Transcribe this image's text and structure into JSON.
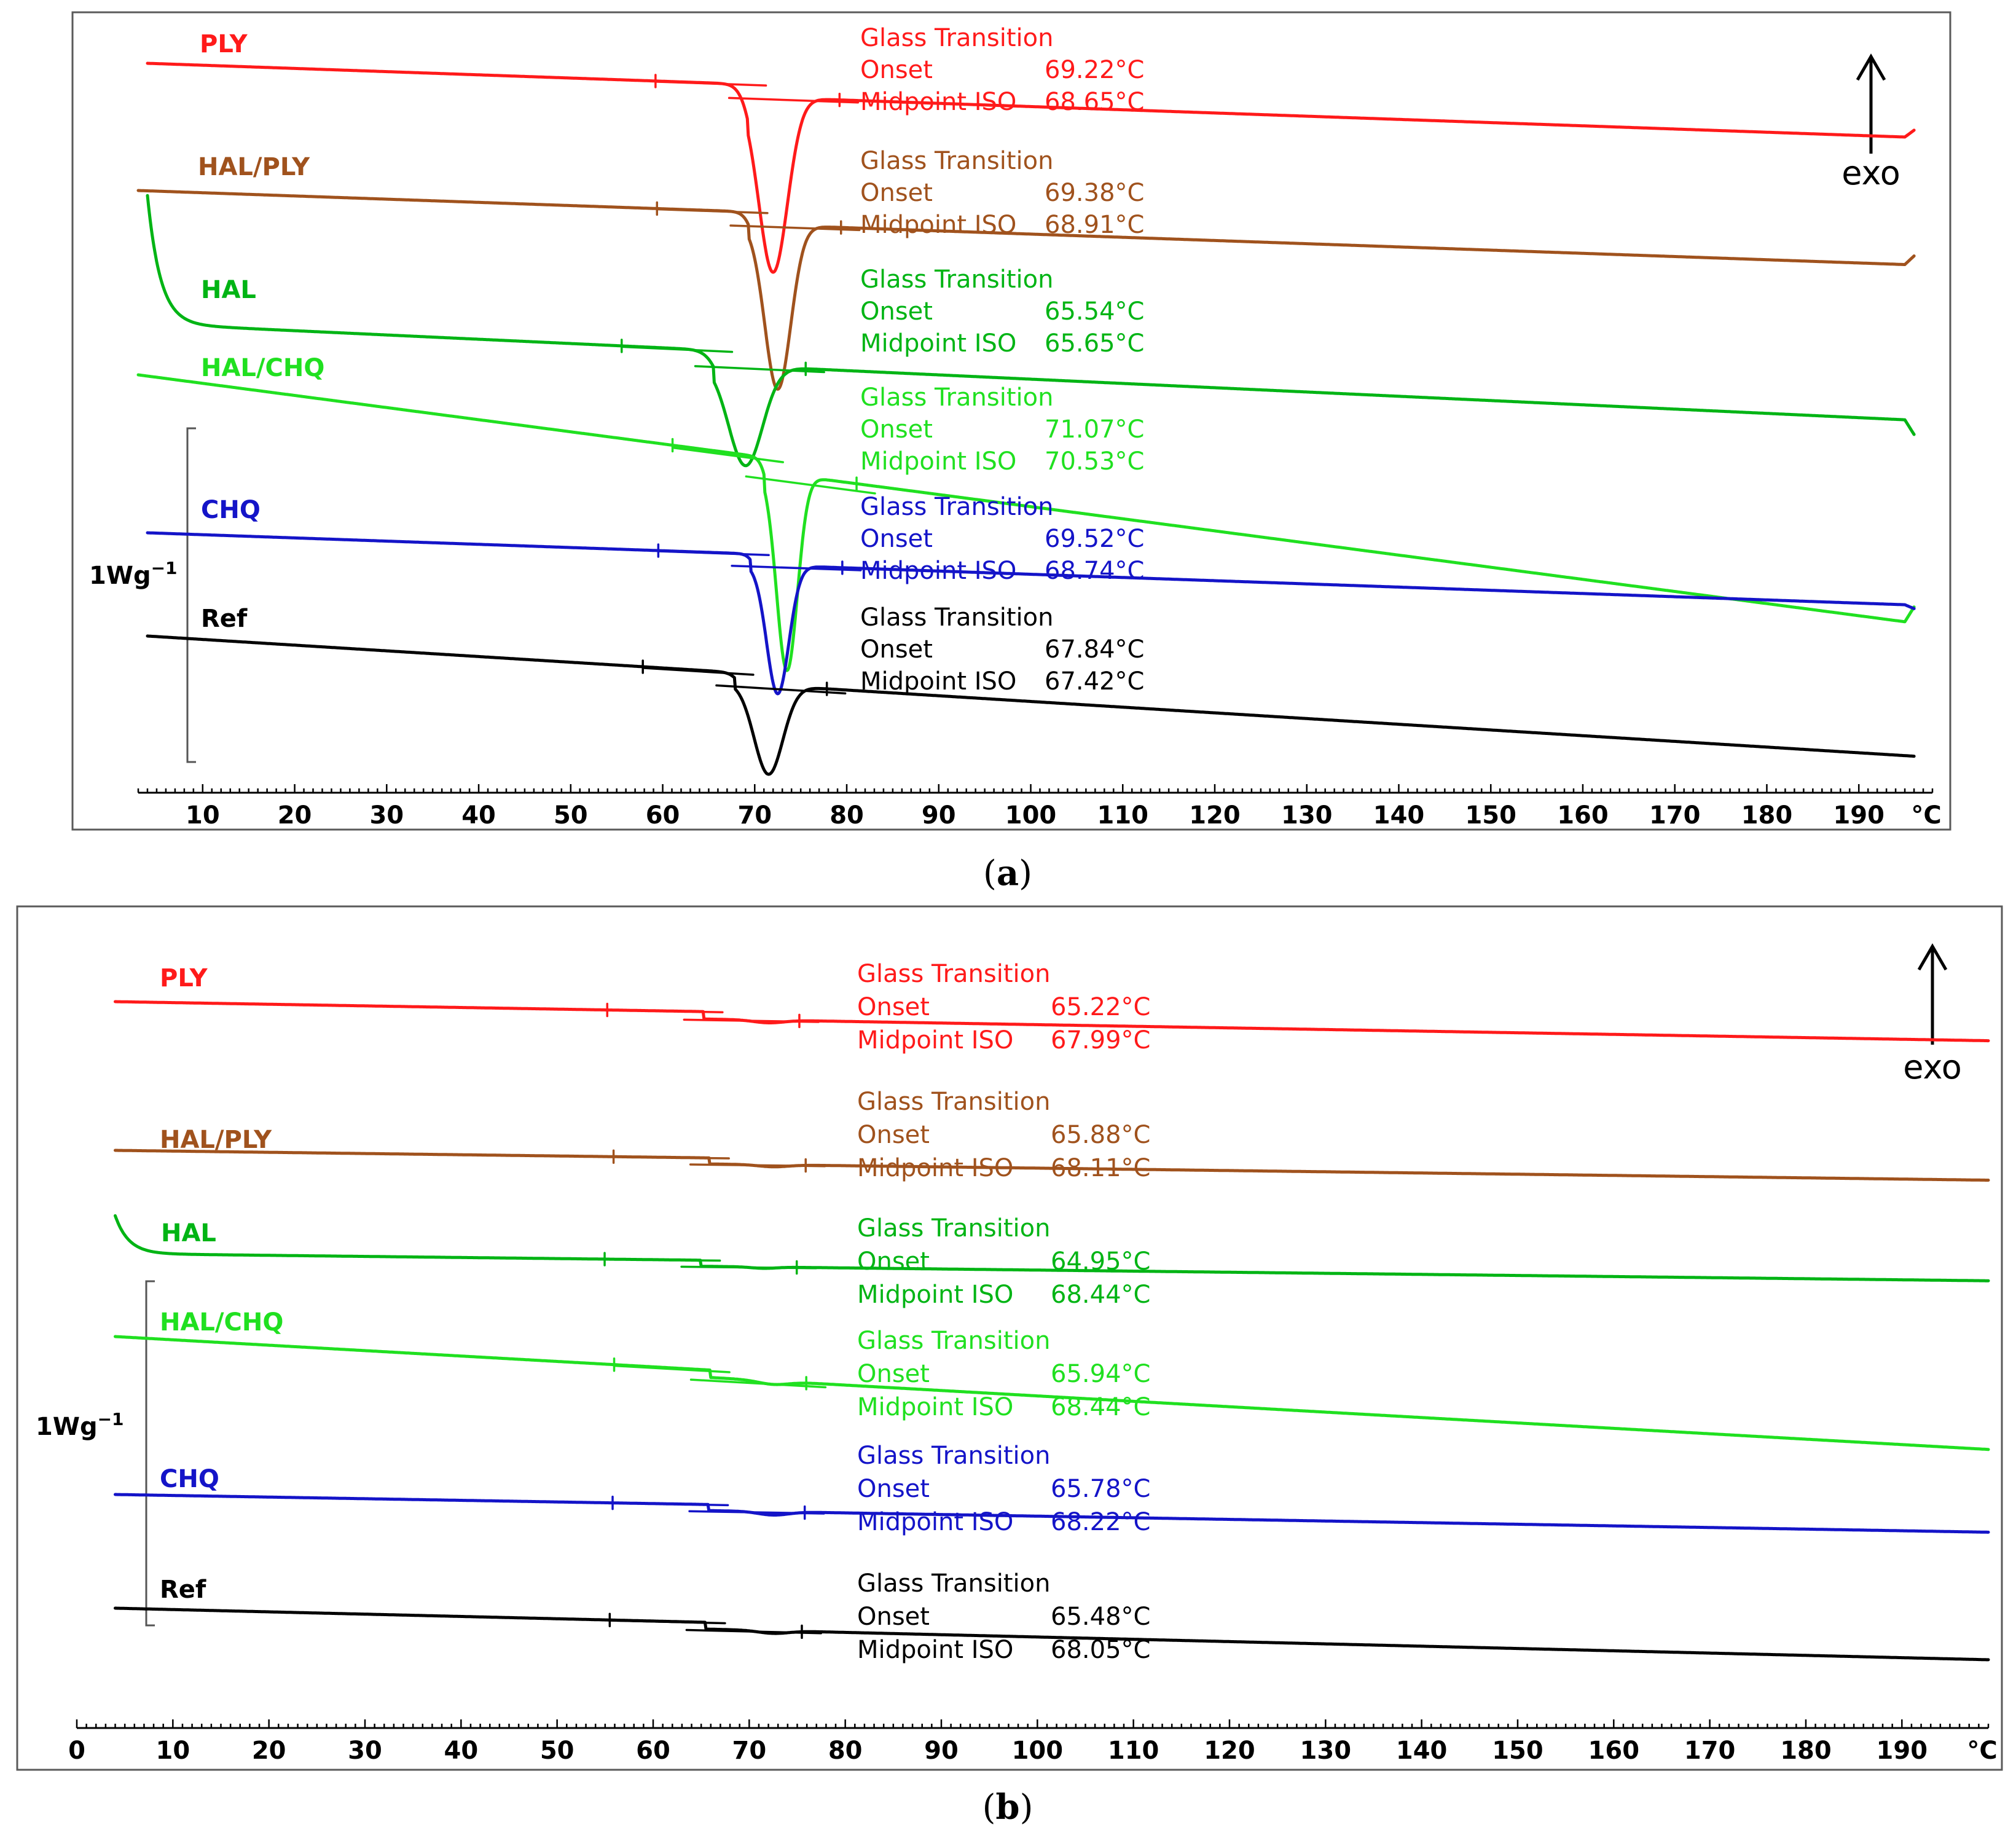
{
  "figure_caption_a": "a",
  "figure_caption_b": "b",
  "colors": {
    "PLY": "#ff1a1a",
    "HAL/PLY": "#a0521d",
    "HAL": "#00b414",
    "HAL/CHQ": "#20e020",
    "CHQ": "#1414c8",
    "Ref": "#000000"
  },
  "chart_data": [
    {
      "type": "line",
      "panel": "a",
      "title": "",
      "xlabel": "°C",
      "xlim": [
        3,
        198
      ],
      "x_ticks": [
        10,
        20,
        30,
        40,
        50,
        60,
        70,
        80,
        90,
        100,
        110,
        120,
        130,
        140,
        150,
        160,
        170,
        180,
        190
      ],
      "x_unit_label": "°C",
      "scale_bar_label": "1Wg",
      "scale_bar_exponent": "−1",
      "exo_label": "exo",
      "series": [
        {
          "name": "PLY",
          "start": 4,
          "end": 196,
          "y_start": 0.0,
          "slope": 0.009,
          "tg": 69.22,
          "dip_center": 72.0,
          "dip_depth": 4.9,
          "dip_width": 2.2,
          "step": 0.35,
          "end_hook": 0.2,
          "annotation": {
            "title": "Glass Transition",
            "onset_label": "Onset",
            "onset_value": "69.22°C",
            "midpoint_label": "Midpoint ISO",
            "midpoint_value": "68.65°C"
          }
        },
        {
          "name": "HAL/PLY",
          "start": 3,
          "end": 196,
          "y_start": 0.0,
          "slope": 0.009,
          "tg": 69.38,
          "dip_center": 72.5,
          "dip_depth": 4.6,
          "dip_width": 2.0,
          "step": 0.35,
          "end_hook": 0.25,
          "annotation": {
            "title": "Glass Transition",
            "onset_label": "Onset",
            "onset_value": "69.38°C",
            "midpoint_label": "Midpoint ISO",
            "midpoint_value": "68.91°C"
          }
        },
        {
          "name": "HAL",
          "start": 4,
          "end": 196,
          "y_start": 0.0,
          "slope": 0.012,
          "tg": 65.54,
          "dip_center": 69.0,
          "dip_depth": 2.8,
          "dip_width": 2.6,
          "step": 0.4,
          "start_spike": 3.6,
          "end_hook": -0.4,
          "annotation": {
            "title": "Glass Transition",
            "onset_label": "Onset",
            "onset_value": "65.54°C",
            "midpoint_label": "Midpoint ISO",
            "midpoint_value": "65.65°C"
          }
        },
        {
          "name": "HAL/CHQ",
          "start": 3,
          "end": 196,
          "y_start": 0.0,
          "slope": 0.034,
          "tg": 71.07,
          "dip_center": 73.5,
          "dip_depth": 5.5,
          "dip_width": 1.6,
          "step": 0.4,
          "end_hook": 0.45,
          "annotation": {
            "title": "Glass Transition",
            "onset_label": "Onset",
            "onset_value": "71.07°C",
            "midpoint_label": "Midpoint ISO",
            "midpoint_value": "70.53°C"
          }
        },
        {
          "name": "CHQ",
          "start": 4,
          "end": 196,
          "y_start": 0.0,
          "slope": 0.009,
          "tg": 69.52,
          "dip_center": 72.5,
          "dip_depth": 3.6,
          "dip_width": 1.7,
          "step": 0.3,
          "end_hook": -0.1,
          "annotation": {
            "title": "Glass Transition",
            "onset_label": "Onset",
            "onset_value": "69.52°C",
            "midpoint_label": "Midpoint ISO",
            "midpoint_value": "68.74°C"
          }
        },
        {
          "name": "Ref",
          "start": 4,
          "end": 196,
          "y_start": 0.0,
          "slope": 0.016,
          "tg": 67.84,
          "dip_center": 71.5,
          "dip_depth": 2.5,
          "dip_width": 2.2,
          "step": 0.3,
          "annotation": {
            "title": "Glass Transition",
            "onset_label": "Onset",
            "onset_value": "67.84°C",
            "midpoint_label": "Midpoint ISO",
            "midpoint_value": "67.42°C"
          }
        }
      ]
    },
    {
      "type": "line",
      "panel": "b",
      "title": "",
      "xlabel": "°C",
      "xlim": [
        0,
        199
      ],
      "x_ticks": [
        0,
        10,
        20,
        30,
        40,
        50,
        60,
        70,
        80,
        90,
        100,
        110,
        120,
        130,
        140,
        150,
        160,
        170,
        180,
        190
      ],
      "x_unit_label": "°C",
      "scale_bar_label": "1Wg",
      "scale_bar_exponent": "−1",
      "exo_label": "exo",
      "series": [
        {
          "name": "PLY",
          "start": 4,
          "end": 199,
          "y_start": 0.0,
          "slope": 0.012,
          "tg": 65.22,
          "dip_center": 72.0,
          "dip_depth": 0.2,
          "dip_width": 2.2,
          "step": 0.55,
          "annotation": {
            "title": "Glass Transition",
            "onset_label": "Onset",
            "onset_value": "65.22°C",
            "midpoint_label": "Midpoint ISO",
            "midpoint_value": "67.99°C"
          }
        },
        {
          "name": "HAL/PLY",
          "start": 4,
          "end": 199,
          "y_start": 0.0,
          "slope": 0.009,
          "tg": 65.88,
          "dip_center": 72.5,
          "dip_depth": 0.15,
          "dip_width": 2.2,
          "step": 0.45,
          "annotation": {
            "title": "Glass Transition",
            "onset_label": "Onset",
            "onset_value": "65.88°C",
            "midpoint_label": "Midpoint ISO",
            "midpoint_value": "68.11°C"
          }
        },
        {
          "name": "HAL",
          "start": 4,
          "end": 199,
          "y_start": 0.0,
          "slope": 0.008,
          "tg": 64.95,
          "dip_center": 71.5,
          "dip_depth": 0.1,
          "dip_width": 1.8,
          "step": 0.45,
          "start_spike": 2.8,
          "annotation": {
            "title": "Glass Transition",
            "onset_label": "Onset",
            "onset_value": "64.95°C",
            "midpoint_label": "Midpoint ISO",
            "midpoint_value": "68.44°C"
          }
        },
        {
          "name": "HAL/CHQ",
          "start": 4,
          "end": 199,
          "y_start": 0.0,
          "slope": 0.04,
          "tg": 65.94,
          "dip_center": 72.5,
          "dip_depth": 0.25,
          "dip_width": 2.2,
          "step": 0.55,
          "annotation": {
            "title": "Glass Transition",
            "onset_label": "Onset",
            "onset_value": "65.94°C",
            "midpoint_label": "Midpoint ISO",
            "midpoint_value": "68.44°C"
          }
        },
        {
          "name": "CHQ",
          "start": 4,
          "end": 199,
          "y_start": 0.0,
          "slope": 0.012,
          "tg": 65.78,
          "dip_center": 72.5,
          "dip_depth": 0.25,
          "dip_width": 2.2,
          "step": 0.45,
          "annotation": {
            "title": "Glass Transition",
            "onset_label": "Onset",
            "onset_value": "65.78°C",
            "midpoint_label": "Midpoint ISO",
            "midpoint_value": "68.22°C"
          }
        },
        {
          "name": "Ref",
          "start": 4,
          "end": 199,
          "y_start": 0.0,
          "slope": 0.017,
          "tg": 65.48,
          "dip_center": 72.5,
          "dip_depth": 0.2,
          "dip_width": 2.2,
          "step": 0.5,
          "annotation": {
            "title": "Glass Transition",
            "onset_label": "Onset",
            "onset_value": "65.48°C",
            "midpoint_label": "Midpoint ISO",
            "midpoint_value": "68.05°C"
          }
        }
      ]
    }
  ]
}
